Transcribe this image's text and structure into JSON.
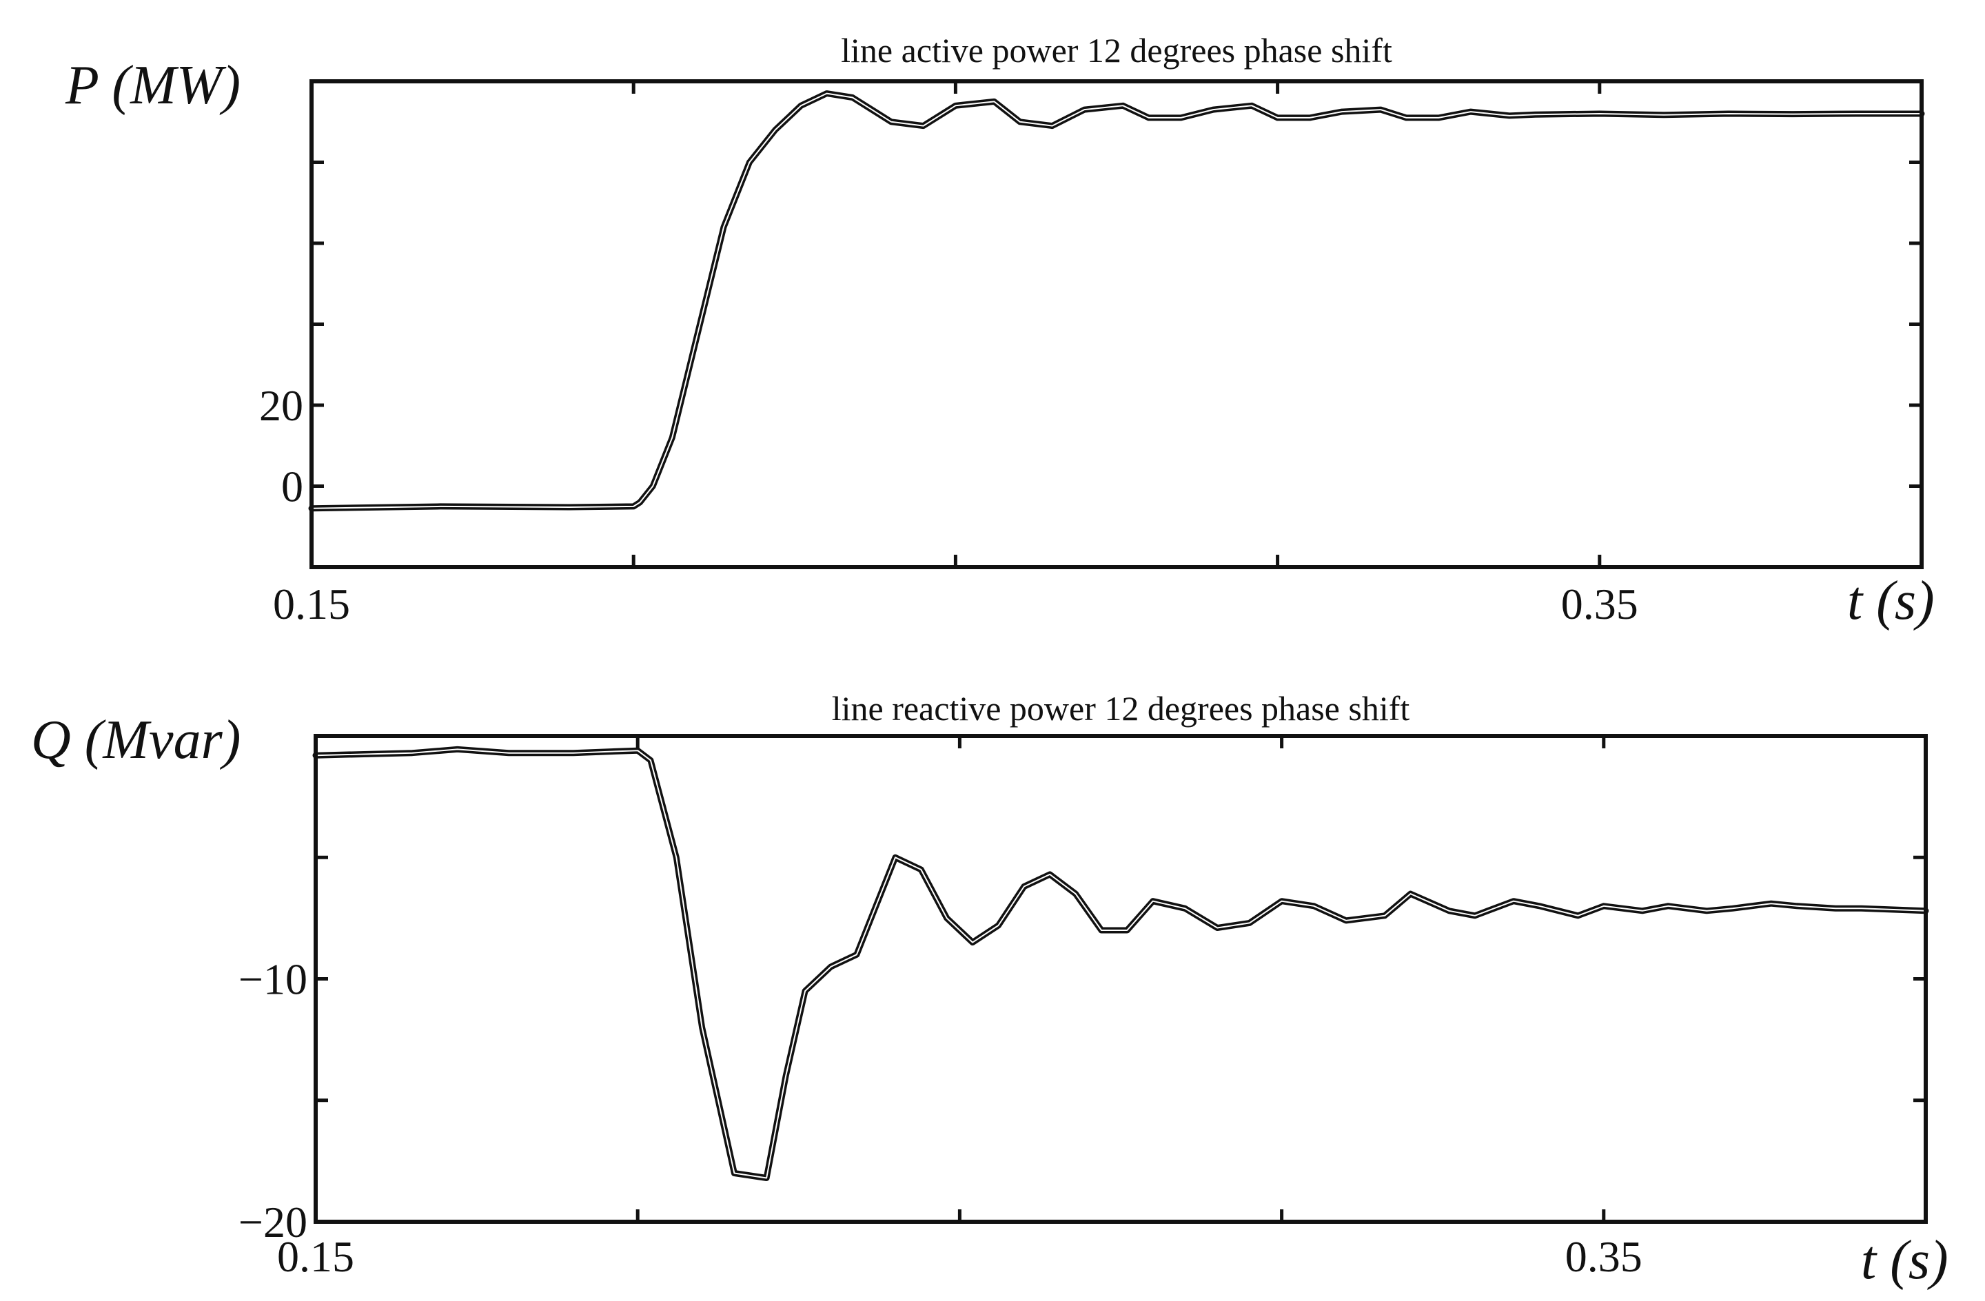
{
  "chart_data": [
    {
      "type": "line",
      "title": "line active power 12 degrees phase shift",
      "ylabel": "P (MW)",
      "xlabel": "t (s)",
      "xlim": [
        0.15,
        0.4
      ],
      "ylim": [
        -20,
        100
      ],
      "x_tick_labels": [
        {
          "value": 0.15,
          "label": "0.15"
        },
        {
          "value": 0.35,
          "label": "0.35"
        }
      ],
      "y_tick_labels": [
        {
          "value": 0,
          "label": "0"
        },
        {
          "value": 20,
          "label": "20"
        }
      ],
      "series": [
        {
          "x": [
            0.15,
            0.17,
            0.19,
            0.2,
            0.201,
            0.203,
            0.206,
            0.21,
            0.214,
            0.218,
            0.222,
            0.226,
            0.23,
            0.234,
            0.24,
            0.245,
            0.25,
            0.256,
            0.26,
            0.265,
            0.27,
            0.276,
            0.28,
            0.285,
            0.29,
            0.296,
            0.3,
            0.305,
            0.31,
            0.316,
            0.32,
            0.325,
            0.33,
            0.336,
            0.34,
            0.35,
            0.36,
            0.37,
            0.38,
            0.39,
            0.4
          ],
          "y": [
            -5.5,
            -5,
            -5.2,
            -5,
            -4,
            0,
            12,
            38,
            64,
            80,
            88,
            94,
            97,
            96,
            90,
            89,
            94,
            95,
            90,
            89,
            93,
            94,
            91,
            91,
            93,
            94,
            91,
            91,
            92.5,
            93,
            91,
            91,
            92.5,
            91.5,
            91.8,
            92,
            91.7,
            92,
            91.9,
            92,
            92
          ]
        }
      ]
    },
    {
      "type": "line",
      "title": "line reactive power 12 degrees phase shift",
      "ylabel": "Q (Mvar)",
      "xlabel": "t (s)",
      "xlim": [
        0.15,
        0.4
      ],
      "ylim": [
        -20,
        0
      ],
      "x_tick_labels": [
        {
          "value": 0.15,
          "label": "0.15"
        },
        {
          "value": 0.35,
          "label": "0.35"
        }
      ],
      "y_tick_labels": [
        {
          "value": -10,
          "label": "−10"
        },
        {
          "value": -20,
          "label": "−20"
        }
      ],
      "series": [
        {
          "x": [
            0.15,
            0.165,
            0.172,
            0.18,
            0.19,
            0.2,
            0.202,
            0.206,
            0.21,
            0.215,
            0.22,
            0.223,
            0.226,
            0.23,
            0.234,
            0.237,
            0.24,
            0.244,
            0.248,
            0.252,
            0.256,
            0.26,
            0.264,
            0.268,
            0.272,
            0.276,
            0.28,
            0.285,
            0.29,
            0.295,
            0.3,
            0.305,
            0.31,
            0.316,
            0.32,
            0.326,
            0.33,
            0.336,
            0.34,
            0.346,
            0.35,
            0.356,
            0.36,
            0.366,
            0.37,
            0.376,
            0.38,
            0.386,
            0.39,
            0.4
          ],
          "y": [
            -0.8,
            -0.7,
            -0.55,
            -0.7,
            -0.7,
            -0.6,
            -1,
            -5,
            -12,
            -18,
            -18.2,
            -14,
            -10.5,
            -9.5,
            -9,
            -7,
            -5,
            -5.5,
            -7.5,
            -8.5,
            -7.8,
            -6.2,
            -5.7,
            -6.5,
            -8,
            -8,
            -6.8,
            -7.1,
            -7.9,
            -7.7,
            -6.8,
            -7,
            -7.6,
            -7.4,
            -6.5,
            -7.2,
            -7.4,
            -6.8,
            -7.0,
            -7.4,
            -7.0,
            -7.2,
            -7.0,
            -7.2,
            -7.1,
            -6.9,
            -7.0,
            -7.1,
            -7.1,
            -7.2
          ]
        }
      ]
    }
  ]
}
